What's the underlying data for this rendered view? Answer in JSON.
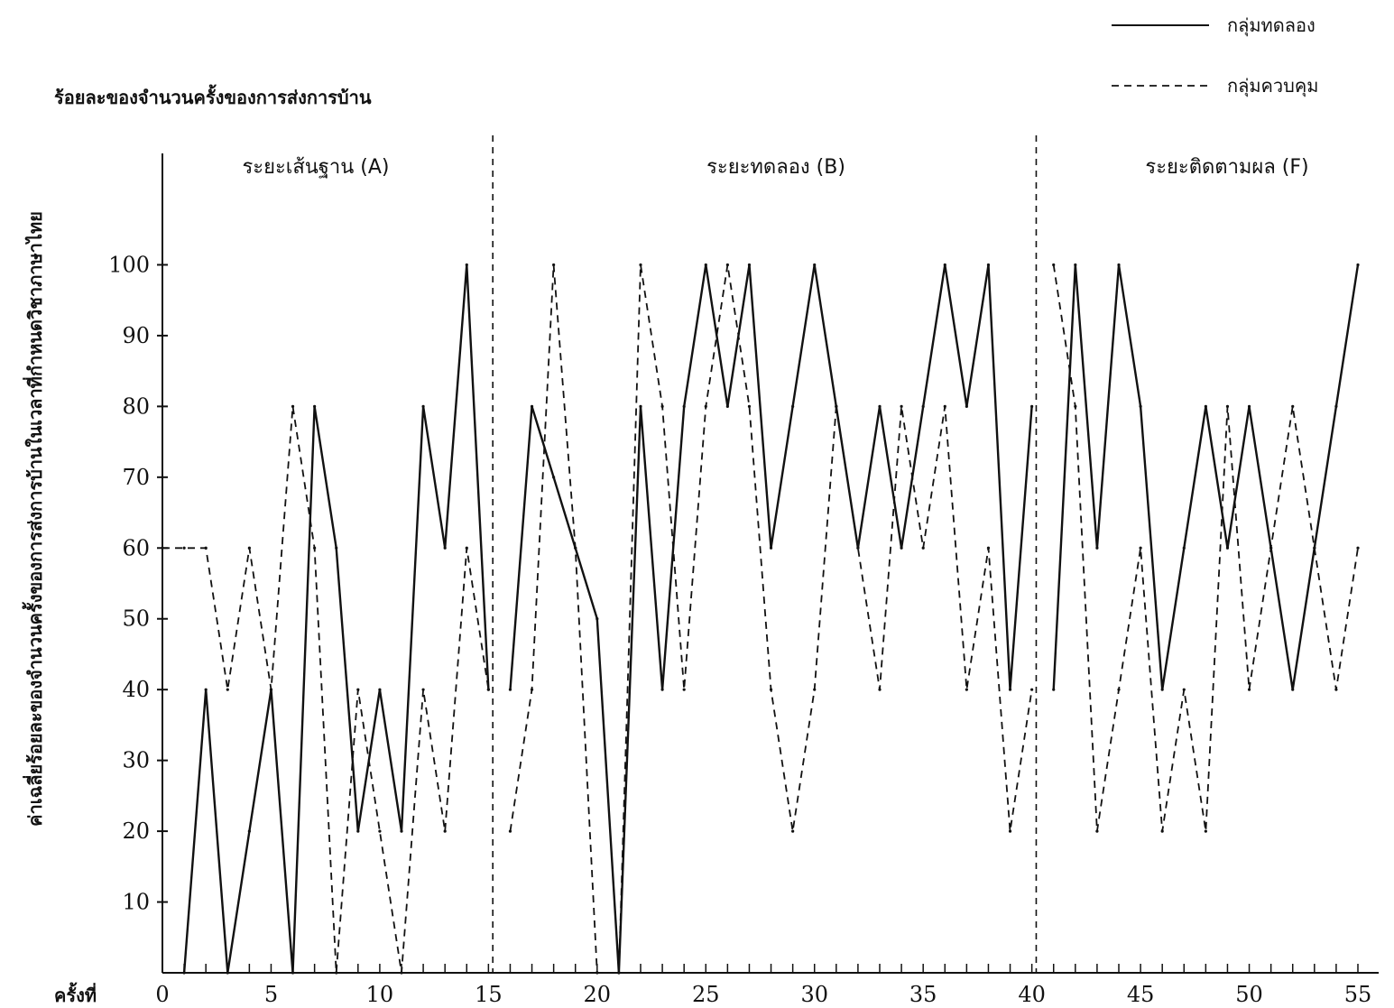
{
  "chart_data": {
    "type": "line",
    "title": "",
    "ylabel": "ค่าเฉลี่ยร้อยละของจำนวนครั้งของการส่งการบ้านในเวลาที่กำหนดวิชาภาษาไทย",
    "ytitle_top": "ร้อยละของจำนวนครั้งของการส่งการบ้าน",
    "xlabel": "ครั้งที่",
    "xlim": [
      0,
      55
    ],
    "ylim": [
      0,
      110
    ],
    "x_ticks": [
      0,
      5,
      10,
      15,
      20,
      25,
      30,
      35,
      40,
      45,
      50,
      55
    ],
    "y_ticks": [
      10,
      20,
      30,
      40,
      50,
      60,
      70,
      80,
      90,
      100
    ],
    "grid": false,
    "legend_position": "top-right",
    "phases": [
      {
        "label": "ระยะเส้นฐาน (A)",
        "start": 0,
        "end": 15
      },
      {
        "label": "ระยะทดลอง (B)",
        "start": 15,
        "end": 40
      },
      {
        "label": "ระยะติดตามผล (F)",
        "start": 40,
        "end": 55
      }
    ],
    "phase_boundaries": [
      15.2,
      40.2
    ],
    "series": [
      {
        "name": "กลุ่มทดลอง",
        "style": "solid",
        "color": "#111111",
        "segments": [
          {
            "x": [
              1,
              2,
              3,
              4,
              5,
              6,
              7,
              8,
              9,
              10,
              11,
              12,
              13,
              14,
              15
            ],
            "y": [
              0,
              40,
              0,
              20,
              40,
              0,
              80,
              60,
              20,
              40,
              20,
              80,
              60,
              100,
              40
            ]
          },
          {
            "x": [
              16,
              17,
              18,
              19,
              20,
              21,
              22,
              23,
              24,
              25,
              26,
              27,
              28,
              29,
              30,
              31,
              32,
              33,
              34,
              35,
              36,
              37,
              38,
              39,
              40
            ],
            "y": [
              40,
              80,
              70,
              60,
              50,
              0,
              80,
              40,
              80,
              100,
              80,
              100,
              60,
              80,
              100,
              80,
              60,
              80,
              60,
              80,
              100,
              80,
              100,
              40,
              80
            ]
          },
          {
            "x": [
              41,
              42,
              43,
              44,
              45,
              46,
              47,
              48,
              49,
              50,
              51,
              52,
              53,
              54,
              55
            ],
            "y": [
              40,
              100,
              60,
              100,
              80,
              40,
              60,
              80,
              60,
              80,
              60,
              40,
              60,
              80,
              100
            ]
          }
        ]
      },
      {
        "name": "กลุ่มควบคุม",
        "style": "dashed",
        "color": "#111111",
        "segments": [
          {
            "x": [
              0,
              1,
              2,
              3,
              4,
              5,
              6,
              7,
              8,
              9,
              10,
              11,
              12,
              13,
              14,
              15
            ],
            "y": [
              60,
              60,
              60,
              40,
              60,
              40,
              80,
              60,
              0,
              40,
              20,
              0,
              40,
              20,
              60,
              40
            ]
          },
          {
            "x": [
              16,
              17,
              18,
              19,
              20,
              21,
              22,
              23,
              24,
              25,
              26,
              27,
              28,
              29,
              30,
              31,
              32,
              33,
              34,
              35,
              36,
              37,
              38,
              39,
              40
            ],
            "y": [
              20,
              40,
              100,
              60,
              0,
              0,
              100,
              80,
              40,
              80,
              100,
              80,
              40,
              20,
              40,
              80,
              60,
              40,
              80,
              60,
              80,
              40,
              60,
              20,
              40
            ]
          },
          {
            "x": [
              41,
              42,
              43,
              44,
              45,
              46,
              47,
              48,
              49,
              50,
              51,
              52,
              53,
              54,
              55
            ],
            "y": [
              100,
              80,
              20,
              40,
              60,
              20,
              40,
              20,
              80,
              40,
              60,
              80,
              60,
              40,
              60
            ]
          }
        ]
      }
    ]
  }
}
